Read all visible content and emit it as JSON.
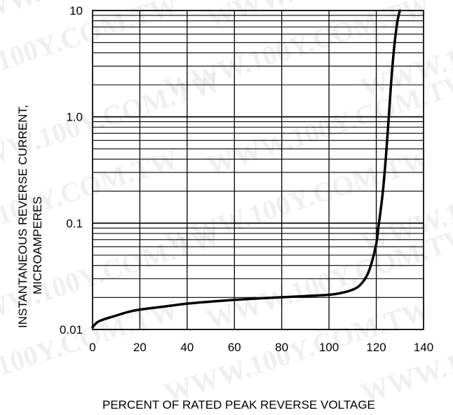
{
  "chart_data": {
    "type": "line",
    "title": "",
    "xlabel": "PERCENT OF RATED PEAK REVERSE VOLTAGE",
    "ylabel_line1": "INSTANTANEOUS REVERSE CURRENT,",
    "ylabel_line2": "MICROAMPERES",
    "xlim": [
      0,
      140
    ],
    "ylim": [
      0.01,
      10
    ],
    "y_scale": "log",
    "grid": true,
    "x_ticks": [
      0,
      20,
      40,
      60,
      80,
      100,
      120,
      140
    ],
    "x_tick_labels": [
      "0",
      "20",
      "40",
      "60",
      "80",
      "100",
      "120",
      "140"
    ],
    "y_ticks": [
      0.01,
      0.1,
      1,
      10
    ],
    "y_tick_labels": [
      "0.01",
      "0.1",
      "1.0",
      "10"
    ],
    "series": [
      {
        "color": "#000000",
        "x": [
          0,
          2,
          5,
          10,
          15,
          20,
          30,
          40,
          50,
          60,
          70,
          80,
          90,
          100,
          105,
          110,
          113,
          116,
          118,
          120,
          121,
          122,
          123,
          124,
          125,
          126,
          127,
          128,
          129,
          130
        ],
        "y": [
          0.0105,
          0.0117,
          0.0125,
          0.0135,
          0.0146,
          0.0154,
          0.0164,
          0.0175,
          0.0183,
          0.019,
          0.0196,
          0.0201,
          0.0206,
          0.0212,
          0.022,
          0.0237,
          0.026,
          0.032,
          0.042,
          0.064,
          0.095,
          0.14,
          0.22,
          0.4,
          0.8,
          1.7,
          3.3,
          5.5,
          8.0,
          10.0
        ]
      }
    ]
  },
  "watermark": "WWW.100Y.COM.TW"
}
